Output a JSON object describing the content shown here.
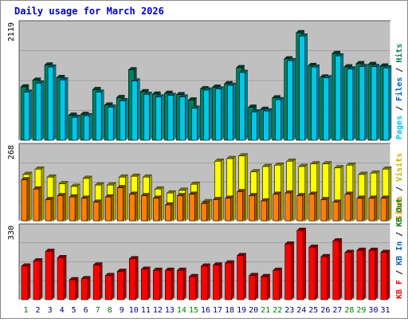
{
  "title": "Daily usage for March 2026",
  "colors": {
    "background": "#c0c0c0",
    "pages": "#008060",
    "files": "#00c8e8",
    "hits": "#008060",
    "visits": "#ffff00",
    "sites": "#ff8000",
    "kb": "#ff0000",
    "weekday_label": "#008000",
    "weekend_label": "#000080"
  },
  "chart_data": [
    {
      "type": "bar",
      "panel": "top",
      "axis_max_label": "2119",
      "ylim": [
        0,
        2119
      ],
      "right_labels": [
        "Pages",
        "Files",
        "Hits"
      ],
      "categories": [
        "1",
        "2",
        "3",
        "4",
        "5",
        "6",
        "7",
        "8",
        "9",
        "10",
        "11",
        "12",
        "13",
        "14",
        "15",
        "16",
        "17",
        "18",
        "19",
        "20",
        "21",
        "22",
        "23",
        "24",
        "25",
        "26",
        "27",
        "28",
        "29",
        "30",
        "31"
      ],
      "series": [
        {
          "name": "Hits",
          "values": [
            1000,
            1125,
            1410,
            1175,
            470,
            485,
            950,
            660,
            800,
            1320,
            910,
            865,
            880,
            855,
            755,
            965,
            995,
            1060,
            1360,
            620,
            580,
            795,
            1525,
            2015,
            1400,
            1185,
            1625,
            1375,
            1435,
            1420,
            1390
          ]
        },
        {
          "name": "Files",
          "values": [
            900,
            1070,
            1370,
            1130,
            430,
            460,
            900,
            620,
            740,
            1110,
            860,
            810,
            840,
            810,
            600,
            940,
            960,
            1030,
            1270,
            530,
            550,
            760,
            1490,
            1950,
            1370,
            1170,
            1580,
            1335,
            1380,
            1380,
            1355
          ]
        },
        {
          "name": "Pages",
          "values": [
            0,
            0,
            0,
            0,
            0,
            0,
            0,
            0,
            0,
            0,
            0,
            0,
            0,
            0,
            0,
            0,
            0,
            0,
            0,
            0,
            0,
            0,
            0,
            0,
            0,
            0,
            0,
            0,
            0,
            0,
            0
          ]
        }
      ]
    },
    {
      "type": "bar",
      "panel": "middle",
      "axis_max_label": "268",
      "ylim": [
        0,
        268
      ],
      "right_labels": [
        "Visits",
        "Sites"
      ],
      "categories": [
        "1",
        "2",
        "3",
        "4",
        "5",
        "6",
        "7",
        "8",
        "9",
        "10",
        "11",
        "12",
        "13",
        "14",
        "15",
        "16",
        "17",
        "18",
        "19",
        "20",
        "21",
        "22",
        "23",
        "24",
        "25",
        "26",
        "27",
        "28",
        "29",
        "30",
        "31"
      ],
      "series": [
        {
          "name": "Visits",
          "values": [
            175,
            195,
            165,
            140,
            130,
            160,
            135,
            135,
            165,
            168,
            165,
            120,
            105,
            115,
            138,
            72,
            225,
            235,
            245,
            185,
            205,
            210,
            225,
            205,
            215,
            215,
            200,
            210,
            175,
            180,
            195
          ]
        },
        {
          "name": "Sites",
          "values": [
            155,
            120,
            80,
            95,
            90,
            85,
            70,
            90,
            125,
            100,
            95,
            85,
            60,
            95,
            100,
            65,
            80,
            85,
            110,
            95,
            75,
            100,
            105,
            95,
            100,
            80,
            70,
            100,
            85,
            85,
            85
          ]
        }
      ]
    },
    {
      "type": "bar",
      "panel": "bottom",
      "axis_max_label": "330",
      "ylim": [
        0,
        330
      ],
      "right_labels": [
        "KB F",
        "KB In",
        "KB Out"
      ],
      "categories": [
        "1",
        "2",
        "3",
        "4",
        "5",
        "6",
        "7",
        "8",
        "9",
        "10",
        "11",
        "12",
        "13",
        "14",
        "15",
        "16",
        "17",
        "18",
        "19",
        "20",
        "21",
        "22",
        "23",
        "24",
        "25",
        "26",
        "27",
        "28",
        "29",
        "30",
        "31"
      ],
      "series": [
        {
          "name": "KB F",
          "values": [
            160,
            185,
            230,
            200,
            95,
            100,
            165,
            115,
            135,
            195,
            145,
            140,
            140,
            140,
            110,
            160,
            165,
            175,
            210,
            115,
            110,
            140,
            265,
            330,
            250,
            205,
            280,
            225,
            235,
            235,
            225
          ]
        }
      ]
    }
  ],
  "day_labels": [
    "1",
    "2",
    "3",
    "4",
    "5",
    "6",
    "7",
    "8",
    "9",
    "10",
    "11",
    "12",
    "13",
    "14",
    "15",
    "16",
    "17",
    "18",
    "19",
    "20",
    "21",
    "22",
    "23",
    "24",
    "25",
    "26",
    "27",
    "28",
    "29",
    "30",
    "31"
  ],
  "weekend_days": [
    1,
    7,
    8,
    14,
    15,
    21,
    22,
    28,
    29
  ]
}
